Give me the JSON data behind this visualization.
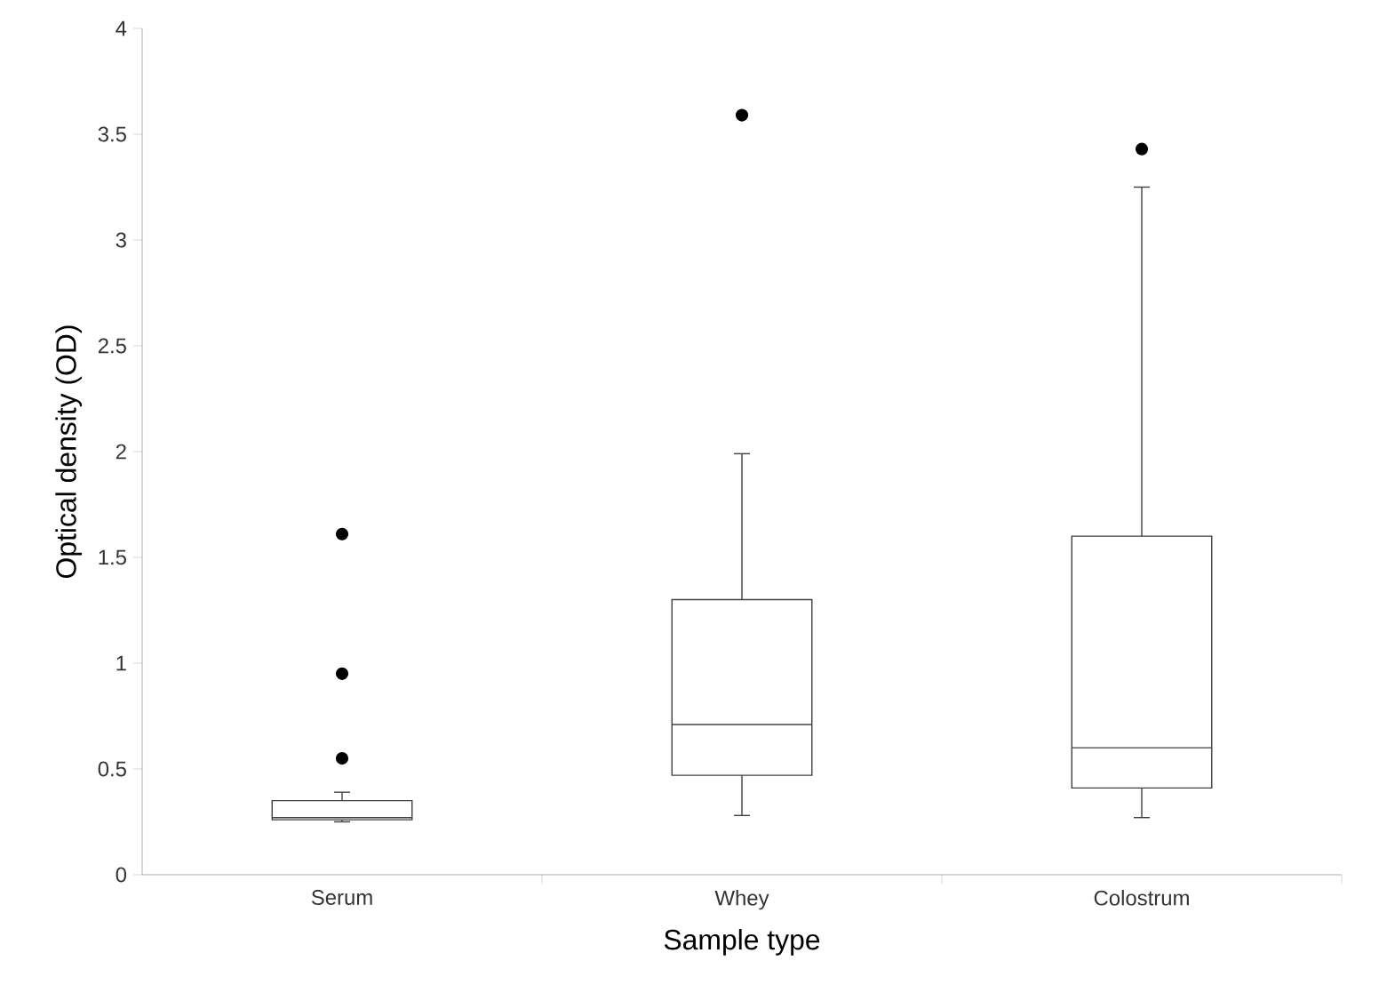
{
  "chart_data": {
    "type": "box",
    "xlabel": "Sample type",
    "ylabel": "Optical density (OD)",
    "categories": [
      "Serum",
      "Whey",
      "Colostrum"
    ],
    "boxes": [
      {
        "low": 0.25,
        "q1": 0.26,
        "median": 0.27,
        "q3": 0.35,
        "high": 0.39,
        "outliers": [
          1.61,
          0.95,
          0.55
        ]
      },
      {
        "low": 0.28,
        "q1": 0.47,
        "median": 0.71,
        "q3": 1.3,
        "high": 1.99,
        "outliers": [
          3.59
        ]
      },
      {
        "low": 0.27,
        "q1": 0.41,
        "median": 0.6,
        "q3": 1.6,
        "high": 3.25,
        "outliers": [
          3.43
        ]
      }
    ],
    "ylim": [
      0,
      4
    ],
    "yticks": [
      0,
      0.5,
      1,
      1.5,
      2,
      2.5,
      3,
      3.5,
      4
    ]
  }
}
